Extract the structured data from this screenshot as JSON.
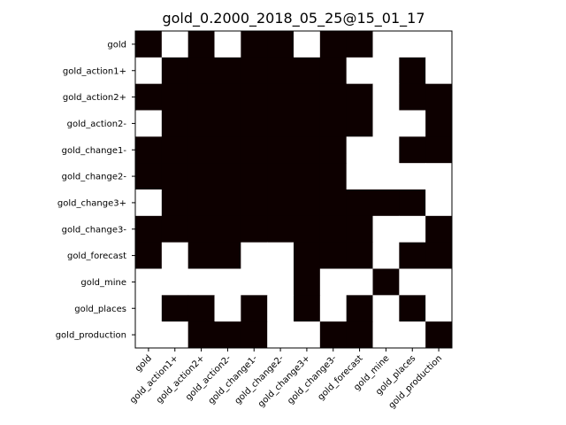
{
  "chart_data": {
    "type": "heatmap",
    "title": "gold_0.2000_2018_05_25@15_01_17",
    "xlabel": "",
    "ylabel": "",
    "row_labels": [
      "gold",
      "gold_action1+",
      "gold_action2+",
      "gold_action2-",
      "gold_change1-",
      "gold_change2-",
      "gold_change3+",
      "gold_change3-",
      "gold_forecast",
      "gold_mine",
      "gold_places",
      "gold_production"
    ],
    "col_labels": [
      "gold",
      "gold_action1+",
      "gold_action2+",
      "gold_action2-",
      "gold_change1-",
      "gold_change2-",
      "gold_change3+",
      "gold_change3-",
      "gold_forecast",
      "gold_mine",
      "gold_places",
      "gold_production"
    ],
    "values": [
      [
        1,
        0,
        1,
        0,
        1,
        1,
        0,
        1,
        1,
        0,
        0,
        0
      ],
      [
        0,
        1,
        1,
        1,
        1,
        1,
        1,
        1,
        0,
        0,
        1,
        0
      ],
      [
        1,
        1,
        1,
        1,
        1,
        1,
        1,
        1,
        1,
        0,
        1,
        1
      ],
      [
        0,
        1,
        1,
        1,
        1,
        1,
        1,
        1,
        1,
        0,
        0,
        1
      ],
      [
        1,
        1,
        1,
        1,
        1,
        1,
        1,
        1,
        0,
        0,
        1,
        1
      ],
      [
        1,
        1,
        1,
        1,
        1,
        1,
        1,
        1,
        0,
        0,
        0,
        0
      ],
      [
        0,
        1,
        1,
        1,
        1,
        1,
        1,
        1,
        1,
        1,
        1,
        0
      ],
      [
        1,
        1,
        1,
        1,
        1,
        1,
        1,
        1,
        1,
        0,
        0,
        1
      ],
      [
        1,
        0,
        1,
        1,
        0,
        0,
        1,
        1,
        1,
        0,
        1,
        1
      ],
      [
        0,
        0,
        0,
        0,
        0,
        0,
        1,
        0,
        0,
        1,
        0,
        0
      ],
      [
        0,
        1,
        1,
        0,
        1,
        0,
        1,
        0,
        1,
        0,
        1,
        0
      ],
      [
        0,
        0,
        1,
        1,
        1,
        0,
        0,
        1,
        1,
        0,
        0,
        1
      ]
    ],
    "colors": {
      "filled": "#0d0000",
      "empty": "#ffffff"
    },
    "grid": false
  }
}
